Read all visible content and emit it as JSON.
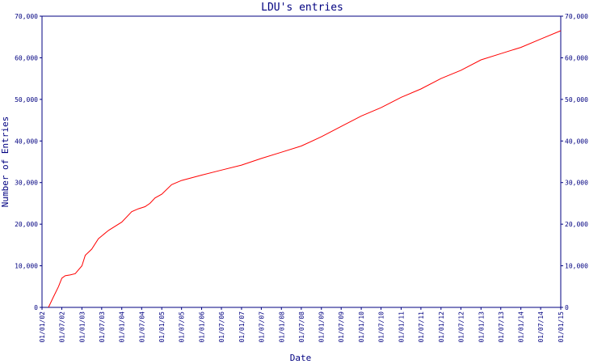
{
  "chart_data": {
    "type": "line",
    "title": "LDU's entries",
    "xlabel": "Date",
    "ylabel": "Number of Entries",
    "ylim": [
      0,
      70000
    ],
    "y_ticks": [
      {
        "value": 0,
        "label": "0"
      },
      {
        "value": 10000,
        "label": "10,000"
      },
      {
        "value": 20000,
        "label": "20,000"
      },
      {
        "value": 30000,
        "label": "30,000"
      },
      {
        "value": 40000,
        "label": "40,000"
      },
      {
        "value": 50000,
        "label": "50,000"
      },
      {
        "value": 60000,
        "label": "60,000"
      },
      {
        "value": 70000,
        "label": "70,000"
      }
    ],
    "x_ticks": [
      {
        "value": "2002-01-01",
        "label": "01/01/02"
      },
      {
        "value": "2002-07-01",
        "label": "01/07/02"
      },
      {
        "value": "2003-01-01",
        "label": "01/01/03"
      },
      {
        "value": "2003-07-01",
        "label": "01/07/03"
      },
      {
        "value": "2004-01-01",
        "label": "01/01/04"
      },
      {
        "value": "2004-07-01",
        "label": "01/07/04"
      },
      {
        "value": "2005-01-01",
        "label": "01/01/05"
      },
      {
        "value": "2005-07-01",
        "label": "01/07/05"
      },
      {
        "value": "2006-01-01",
        "label": "01/01/06"
      },
      {
        "value": "2006-07-01",
        "label": "01/07/06"
      },
      {
        "value": "2007-01-01",
        "label": "01/01/07"
      },
      {
        "value": "2007-07-01",
        "label": "01/07/07"
      },
      {
        "value": "2008-01-01",
        "label": "01/01/08"
      },
      {
        "value": "2008-07-01",
        "label": "01/07/08"
      },
      {
        "value": "2009-01-01",
        "label": "01/01/09"
      },
      {
        "value": "2009-07-01",
        "label": "01/07/09"
      },
      {
        "value": "2010-01-01",
        "label": "01/01/10"
      },
      {
        "value": "2010-07-01",
        "label": "01/07/10"
      },
      {
        "value": "2011-01-01",
        "label": "01/01/11"
      },
      {
        "value": "2011-07-01",
        "label": "01/07/11"
      },
      {
        "value": "2012-01-01",
        "label": "01/01/12"
      },
      {
        "value": "2012-07-01",
        "label": "01/07/12"
      },
      {
        "value": "2013-01-01",
        "label": "01/01/13"
      },
      {
        "value": "2013-07-01",
        "label": "01/07/13"
      },
      {
        "value": "2014-01-01",
        "label": "01/01/14"
      },
      {
        "value": "2014-07-01",
        "label": "01/07/14"
      },
      {
        "value": "2015-01-01",
        "label": "01/01/15"
      }
    ],
    "grid": false,
    "series": [
      {
        "color": "#ff0000",
        "points": [
          [
            "2002-03-01",
            0
          ],
          [
            "2002-04-15",
            2500
          ],
          [
            "2002-06-01",
            5000
          ],
          [
            "2002-07-01",
            7000
          ],
          [
            "2002-08-01",
            7600
          ],
          [
            "2002-09-15",
            7800
          ],
          [
            "2002-11-01",
            8100
          ],
          [
            "2003-01-01",
            10000
          ],
          [
            "2003-02-01",
            12500
          ],
          [
            "2003-04-01",
            14000
          ],
          [
            "2003-06-01",
            16500
          ],
          [
            "2003-09-01",
            18500
          ],
          [
            "2004-01-01",
            20500
          ],
          [
            "2004-04-01",
            23000
          ],
          [
            "2004-06-01",
            23700
          ],
          [
            "2004-08-01",
            24200
          ],
          [
            "2004-09-15",
            25000
          ],
          [
            "2004-11-01",
            26300
          ],
          [
            "2005-01-01",
            27200
          ],
          [
            "2005-04-01",
            29500
          ],
          [
            "2005-07-01",
            30500
          ],
          [
            "2006-01-01",
            31800
          ],
          [
            "2006-07-01",
            33000
          ],
          [
            "2007-01-01",
            34200
          ],
          [
            "2007-07-01",
            35800
          ],
          [
            "2008-01-01",
            37300
          ],
          [
            "2008-07-01",
            38800
          ],
          [
            "2009-01-01",
            41000
          ],
          [
            "2009-07-01",
            43500
          ],
          [
            "2010-01-01",
            46000
          ],
          [
            "2010-07-01",
            48000
          ],
          [
            "2011-01-01",
            50500
          ],
          [
            "2011-07-01",
            52500
          ],
          [
            "2012-01-01",
            55000
          ],
          [
            "2012-07-01",
            57000
          ],
          [
            "2013-01-01",
            59500
          ],
          [
            "2013-07-01",
            61000
          ],
          [
            "2014-01-01",
            62500
          ],
          [
            "2014-07-01",
            64500
          ],
          [
            "2015-01-01",
            66500
          ]
        ]
      }
    ]
  }
}
